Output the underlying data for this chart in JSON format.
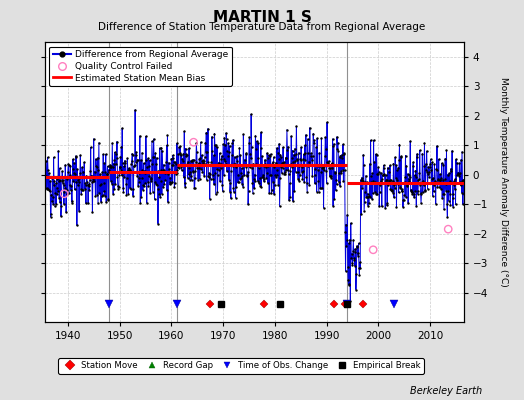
{
  "title": "MARTIN 1 S",
  "subtitle": "Difference of Station Temperature Data from Regional Average",
  "ylabel": "Monthly Temperature Anomaly Difference (°C)",
  "xlim": [
    1935.5,
    2016.5
  ],
  "ylim": [
    -5,
    4.5
  ],
  "yticks": [
    -4,
    -3,
    -2,
    -1,
    0,
    1,
    2,
    3,
    4
  ],
  "xticks": [
    1940,
    1950,
    1960,
    1970,
    1980,
    1990,
    2000,
    2010
  ],
  "background_color": "#e0e0e0",
  "plot_bg_color": "#ffffff",
  "vertical_line_color": "#909090",
  "vertical_lines": [
    1948,
    1961,
    1994
  ],
  "station_moves": [
    1967.5,
    1978.0,
    1991.5,
    1993.5,
    1997.0
  ],
  "record_gaps": [],
  "obs_changes": [
    1948.0,
    1961.0,
    1994.0,
    2003.0
  ],
  "empirical_breaks": [
    1969.5,
    1981.0,
    1994.0
  ],
  "bias_segments": [
    {
      "x": [
        1935.5,
        1948.0
      ],
      "y": [
        -0.08,
        -0.08
      ]
    },
    {
      "x": [
        1948.0,
        1961.0
      ],
      "y": [
        0.08,
        0.08
      ]
    },
    {
      "x": [
        1961.0,
        1994.0
      ],
      "y": [
        0.32,
        0.32
      ]
    },
    {
      "x": [
        1994.0,
        2016.5
      ],
      "y": [
        -0.28,
        -0.28
      ]
    }
  ],
  "seed": 42,
  "line_color": "#0000dd",
  "marker_color": "#000000",
  "bias_color": "#ff0000",
  "qc_color": "#ff80c0",
  "qc_points_x": [
    1939.3,
    1964.3,
    1999.0,
    2013.5
  ],
  "qc_points_y": [
    -0.65,
    1.1,
    -2.55,
    -1.85
  ],
  "annotation_bottom": "Berkeley Earth",
  "marker_y": -4.4
}
